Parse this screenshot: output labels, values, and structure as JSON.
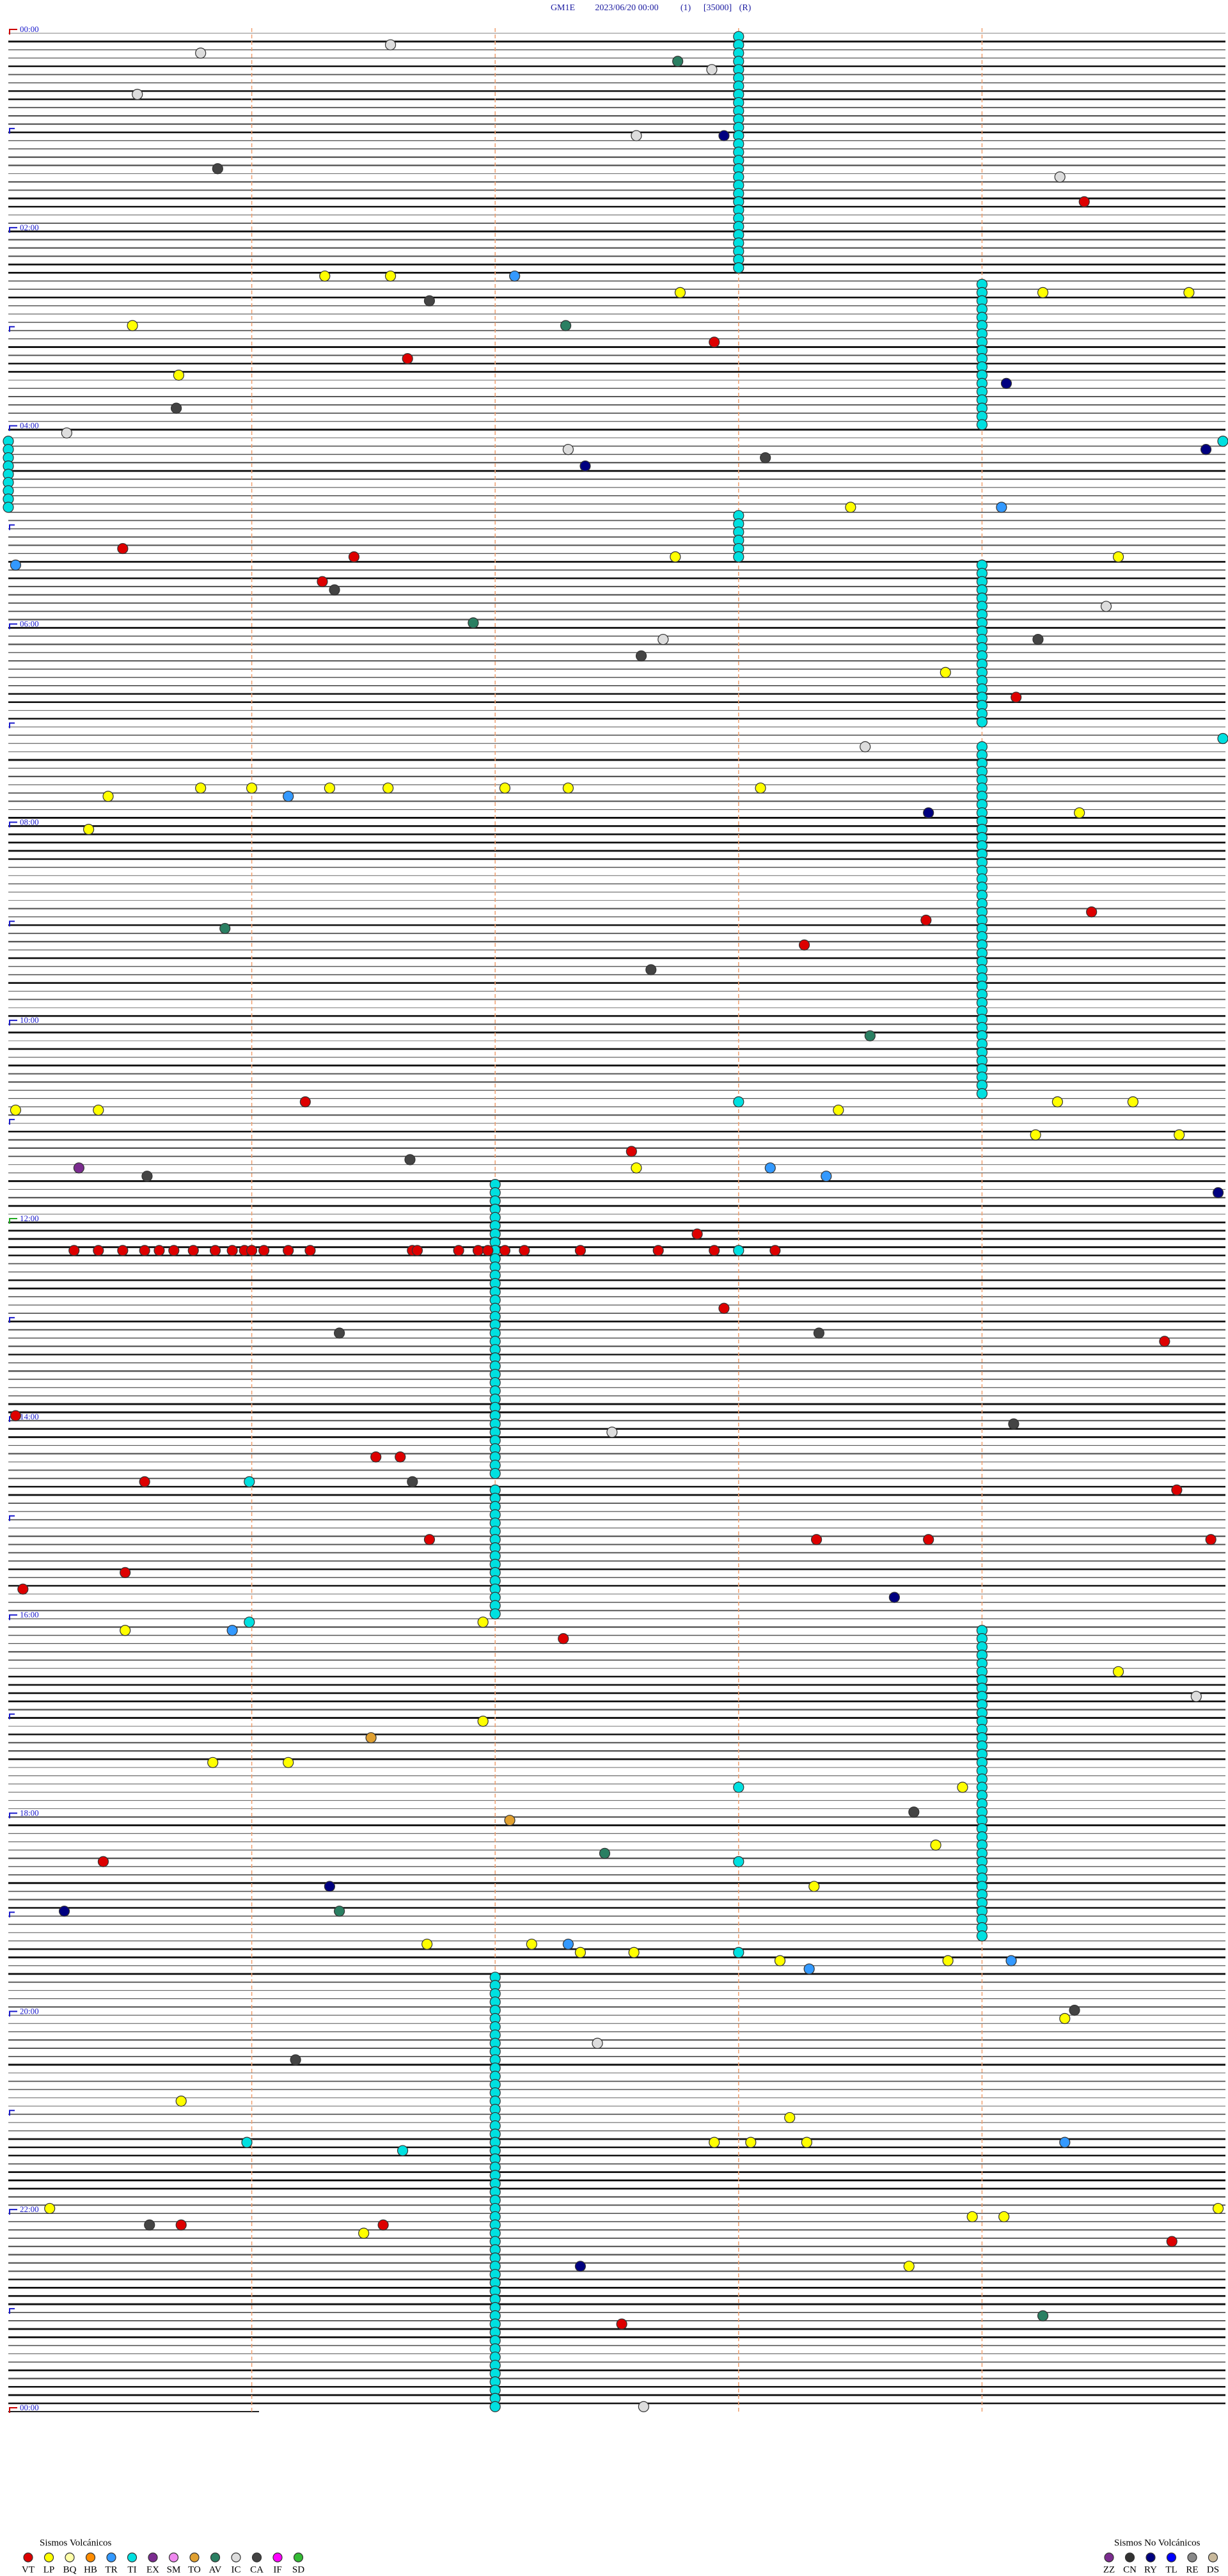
{
  "header": {
    "station": "GM1E",
    "datetime": "2023/06/20 00:00",
    "channel": "(1)",
    "scale": "[35000]",
    "mode": "(R)"
  },
  "hour_labels": [
    "00:00",
    "02:00",
    "04:00",
    "06:00",
    "08:00",
    "10:00",
    "12:00",
    "14:00",
    "16:00",
    "18:00",
    "20:00",
    "22:00",
    "00:00"
  ],
  "legend": {
    "volcanic": {
      "title": "Sismos Volcánicos",
      "items": [
        {
          "code": "VT",
          "color": "#dd0000"
        },
        {
          "code": "LP",
          "color": "#ffff00"
        },
        {
          "code": "BQ",
          "color": "#ffffa8"
        },
        {
          "code": "HB",
          "color": "#ff8c00"
        },
        {
          "code": "TR",
          "color": "#3399ff"
        },
        {
          "code": "TI",
          "color": "#00e0e0"
        },
        {
          "code": "EX",
          "color": "#7b2c8f"
        },
        {
          "code": "SM",
          "color": "#ee88ee"
        },
        {
          "code": "TO",
          "color": "#e0a030"
        },
        {
          "code": "AV",
          "color": "#2a7f62"
        },
        {
          "code": "IC",
          "color": "#dddddd"
        },
        {
          "code": "CA",
          "color": "#444444"
        },
        {
          "code": "IF",
          "color": "#ff00ff"
        },
        {
          "code": "SD",
          "color": "#33bb33"
        }
      ]
    },
    "non_volcanic": {
      "title": "Sismos No Volcánicos",
      "items": [
        {
          "code": "ZZ",
          "color": "#7b2c8f"
        },
        {
          "code": "CN",
          "color": "#333333"
        },
        {
          "code": "RY",
          "color": "#000080"
        },
        {
          "code": "TL",
          "color": "#0000ff"
        },
        {
          "code": "RE",
          "color": "#888888"
        },
        {
          "code": "DS",
          "color": "#c8b89a"
        }
      ]
    }
  },
  "event_runs": [
    [
      3.0,
      0,
      28,
      5
    ],
    [
      4.0,
      30,
      47,
      5
    ],
    [
      0.0,
      49,
      57,
      5
    ],
    [
      3.0,
      58,
      63,
      5
    ],
    [
      4.0,
      64,
      83,
      5
    ],
    [
      4.0,
      86,
      128,
      5
    ],
    [
      2.0,
      139,
      174,
      5
    ],
    [
      2.0,
      176,
      191,
      5
    ],
    [
      4.0,
      193,
      230,
      5
    ],
    [
      2.0,
      235,
      287,
      5
    ]
  ],
  "events": [
    [
      1.4,
      1.57,
      0,
      10
    ],
    [
      2.4,
      0.79,
      0,
      10
    ],
    [
      3.4,
      2.75,
      0,
      9
    ],
    [
      4.4,
      2.89,
      0,
      10
    ],
    [
      7.4,
      0.53,
      0,
      10
    ],
    [
      12.4,
      2.94,
      1,
      2
    ],
    [
      12.4,
      2.58,
      0,
      10
    ],
    [
      16.4,
      0.86,
      0,
      11
    ],
    [
      17.4,
      4.32,
      0,
      10
    ],
    [
      20.4,
      4.42,
      0,
      0
    ],
    [
      29.4,
      1.3,
      0,
      1
    ],
    [
      29.4,
      1.57,
      0,
      1
    ],
    [
      29.4,
      2.08,
      0,
      4
    ],
    [
      31.4,
      2.76,
      0,
      1
    ],
    [
      31.4,
      4.25,
      0,
      1
    ],
    [
      31.4,
      4.85,
      0,
      1
    ],
    [
      32.4,
      1.73,
      0,
      11
    ],
    [
      35.4,
      0.51,
      0,
      1
    ],
    [
      35.4,
      2.29,
      0,
      9
    ],
    [
      37.4,
      2.9,
      0,
      0
    ],
    [
      39.4,
      1.64,
      0,
      0
    ],
    [
      41.4,
      0.7,
      0,
      1
    ],
    [
      42.4,
      4.1,
      1,
      2
    ],
    [
      45.4,
      0.69,
      0,
      11
    ],
    [
      48.4,
      0.24,
      0,
      10
    ],
    [
      49.4,
      5.0,
      0,
      5
    ],
    [
      51.4,
      3.11,
      0,
      11
    ],
    [
      50.4,
      4.92,
      1,
      2
    ],
    [
      52.4,
      2.37,
      1,
      2
    ],
    [
      57.4,
      3.46,
      0,
      1
    ],
    [
      57.4,
      4.08,
      0,
      4
    ],
    [
      62.4,
      0.47,
      0,
      0
    ],
    [
      63.4,
      1.42,
      0,
      0
    ],
    [
      63.4,
      2.74,
      0,
      1
    ],
    [
      63.4,
      4.56,
      0,
      1
    ],
    [
      64.4,
      0.03,
      0,
      4
    ],
    [
      66.4,
      1.29,
      0,
      0
    ],
    [
      67.4,
      1.34,
      0,
      11
    ],
    [
      71.4,
      1.91,
      0,
      9
    ],
    [
      73.4,
      4.23,
      0,
      11
    ],
    [
      75.4,
      2.6,
      0,
      11
    ],
    [
      77.4,
      3.85,
      0,
      1
    ],
    [
      80.4,
      4.14,
      0,
      0
    ],
    [
      85.4,
      5.0,
      0,
      5
    ],
    [
      92.4,
      0.41,
      0,
      1
    ],
    [
      91.4,
      0.79,
      0,
      1
    ],
    [
      91.4,
      1.0,
      0,
      1
    ],
    [
      91.4,
      1.32,
      0,
      1
    ],
    [
      91.4,
      1.56,
      0,
      1
    ],
    [
      91.4,
      2.04,
      0,
      1
    ],
    [
      91.4,
      2.3,
      0,
      1
    ],
    [
      91.4,
      3.09,
      0,
      1
    ],
    [
      92.4,
      1.15,
      0,
      4
    ],
    [
      94.4,
      3.78,
      1,
      2
    ],
    [
      94.4,
      4.4,
      0,
      1
    ],
    [
      96.4,
      0.33,
      0,
      1
    ],
    [
      108.4,
      0.89,
      0,
      9
    ],
    [
      107.4,
      3.77,
      0,
      0
    ],
    [
      106.4,
      4.45,
      0,
      0
    ],
    [
      110.4,
      3.27,
      0,
      0
    ],
    [
      113.4,
      2.64,
      0,
      11
    ],
    [
      121.4,
      3.54,
      0,
      9
    ],
    [
      129.4,
      1.22,
      0,
      0
    ],
    [
      130.4,
      0.03,
      0,
      1
    ],
    [
      130.4,
      0.37,
      0,
      1
    ],
    [
      130.4,
      3.41,
      0,
      1
    ],
    [
      129.4,
      4.31,
      0,
      1
    ],
    [
      129.4,
      4.62,
      0,
      1
    ],
    [
      129.4,
      3.0,
      0,
      5
    ],
    [
      133.4,
      4.22,
      0,
      1
    ],
    [
      133.4,
      4.81,
      0,
      1
    ],
    [
      135.4,
      2.56,
      0,
      0
    ],
    [
      136.4,
      1.65,
      0,
      11
    ],
    [
      137.4,
      0.29,
      0,
      6
    ],
    [
      137.4,
      2.58,
      0,
      1
    ],
    [
      137.4,
      3.13,
      0,
      4
    ],
    [
      138.4,
      0.57,
      0,
      11
    ],
    [
      138.4,
      3.36,
      0,
      4
    ],
    [
      140.4,
      4.97,
      1,
      2
    ],
    [
      145.4,
      2.83,
      0,
      0
    ],
    [
      147.4,
      0.27,
      0,
      0
    ],
    [
      147.4,
      0.37,
      0,
      0
    ],
    [
      147.4,
      0.47,
      0,
      0
    ],
    [
      147.4,
      0.56,
      0,
      0
    ],
    [
      147.4,
      0.62,
      0,
      0
    ],
    [
      147.4,
      0.68,
      0,
      0
    ],
    [
      147.4,
      0.76,
      0,
      0
    ],
    [
      147.4,
      0.85,
      0,
      0
    ],
    [
      147.4,
      0.92,
      0,
      0
    ],
    [
      147.4,
      0.97,
      0,
      0
    ],
    [
      147.4,
      1.0,
      0,
      0
    ],
    [
      147.4,
      1.05,
      0,
      0
    ],
    [
      147.4,
      1.15,
      0,
      0
    ],
    [
      147.4,
      1.24,
      0,
      0
    ],
    [
      147.4,
      1.66,
      0,
      0
    ],
    [
      147.4,
      1.68,
      0,
      0
    ],
    [
      147.4,
      1.85,
      0,
      0
    ],
    [
      147.4,
      1.93,
      0,
      0
    ],
    [
      147.4,
      1.97,
      0,
      0
    ],
    [
      147.4,
      2.04,
      0,
      0
    ],
    [
      147.4,
      2.12,
      0,
      0
    ],
    [
      147.4,
      2.35,
      0,
      0
    ],
    [
      147.4,
      2.67,
      0,
      0
    ],
    [
      147.4,
      2.9,
      0,
      0
    ],
    [
      147.4,
      3.15,
      0,
      0
    ],
    [
      147.4,
      3.0,
      0,
      5
    ],
    [
      154.4,
      2.94,
      0,
      0
    ],
    [
      157.4,
      1.36,
      0,
      11
    ],
    [
      157.4,
      3.33,
      0,
      11
    ],
    [
      158.4,
      4.75,
      0,
      0
    ],
    [
      168.4,
      4.13,
      0,
      11
    ],
    [
      167.4,
      0.03,
      0,
      0
    ],
    [
      172.4,
      1.51,
      0,
      0
    ],
    [
      172.4,
      1.61,
      0,
      0
    ],
    [
      175.4,
      0.56,
      0,
      0
    ],
    [
      175.4,
      0.99,
      0,
      5
    ],
    [
      175.4,
      1.66,
      0,
      11
    ],
    [
      176.4,
      4.8,
      0,
      0
    ],
    [
      182.4,
      1.73,
      0,
      0
    ],
    [
      182.4,
      3.32,
      0,
      0
    ],
    [
      182.4,
      3.78,
      0,
      0
    ],
    [
      182.4,
      4.94,
      0,
      0
    ],
    [
      186.4,
      0.48,
      0,
      0
    ],
    [
      188.4,
      0.06,
      0,
      0
    ],
    [
      189.4,
      3.64,
      1,
      2
    ],
    [
      193.4,
      0.48,
      0,
      1
    ],
    [
      193.4,
      0.92,
      0,
      4
    ],
    [
      192.4,
      0.99,
      0,
      5
    ],
    [
      192.4,
      1.95,
      0,
      1
    ],
    [
      194.4,
      2.28,
      0,
      0
    ],
    [
      198.4,
      4.56,
      0,
      1
    ],
    [
      206.4,
      1.49,
      0,
      8
    ],
    [
      204.4,
      1.95,
      0,
      1
    ],
    [
      209.4,
      0.84,
      0,
      1
    ],
    [
      209.4,
      1.15,
      0,
      1
    ],
    [
      212.4,
      3.0,
      0,
      5
    ],
    [
      212.4,
      3.92,
      0,
      1
    ],
    [
      215.4,
      3.72,
      0,
      11
    ],
    [
      216.4,
      2.06,
      0,
      8
    ],
    [
      220.4,
      2.45,
      0,
      9
    ],
    [
      221.4,
      0.39,
      0,
      0
    ],
    [
      221.4,
      3.0,
      0,
      5
    ],
    [
      219.4,
      3.81,
      0,
      1
    ],
    [
      224.4,
      3.31,
      0,
      1
    ],
    [
      224.4,
      1.32,
      1,
      2
    ],
    [
      227.4,
      1.36,
      0,
      9
    ],
    [
      227.4,
      0.23,
      1,
      2
    ],
    [
      231.4,
      1.72,
      0,
      1
    ],
    [
      231.4,
      2.15,
      0,
      1
    ],
    [
      231.4,
      2.3,
      0,
      4
    ],
    [
      232.4,
      2.35,
      0,
      1
    ],
    [
      232.4,
      2.57,
      0,
      1
    ],
    [
      232.4,
      3.0,
      0,
      5
    ],
    [
      233.4,
      3.17,
      0,
      1
    ],
    [
      234.4,
      3.29,
      0,
      4
    ],
    [
      233.4,
      3.86,
      0,
      1
    ],
    [
      233.4,
      4.12,
      0,
      4
    ],
    [
      239.4,
      4.38,
      0,
      11
    ],
    [
      240.4,
      4.34,
      0,
      1
    ],
    [
      245.4,
      1.18,
      0,
      11
    ],
    [
      250.4,
      0.71,
      0,
      1
    ],
    [
      252.4,
      3.21,
      0,
      1
    ],
    [
      255.4,
      0.98,
      0,
      5
    ],
    [
      256.4,
      1.62,
      0,
      5
    ],
    [
      255.4,
      2.9,
      0,
      1
    ],
    [
      255.4,
      3.05,
      0,
      1
    ],
    [
      255.4,
      3.28,
      0,
      1
    ],
    [
      255.4,
      4.34,
      0,
      4
    ],
    [
      263.4,
      0.17,
      0,
      1
    ],
    [
      263.4,
      4.97,
      0,
      1
    ],
    [
      264.4,
      3.96,
      0,
      1
    ],
    [
      264.4,
      4.09,
      0,
      1
    ],
    [
      265.4,
      0.58,
      0,
      11
    ],
    [
      265.4,
      0.71,
      0,
      0
    ],
    [
      265.4,
      1.54,
      0,
      0
    ],
    [
      266.4,
      1.46,
      0,
      1
    ],
    [
      267.4,
      4.78,
      0,
      0
    ],
    [
      270.4,
      2.35,
      1,
      2
    ],
    [
      270.4,
      3.7,
      0,
      1
    ],
    [
      276.4,
      4.25,
      0,
      9
    ],
    [
      277.4,
      2.52,
      0,
      0
    ],
    [
      50.4,
      2.3,
      0,
      10
    ],
    [
      73.4,
      2.69,
      0,
      10
    ],
    [
      69.4,
      4.51,
      0,
      10
    ],
    [
      86.4,
      3.52,
      0,
      10
    ],
    [
      201.4,
      4.88,
      0,
      10
    ],
    [
      169.4,
      2.48,
      0,
      10
    ],
    [
      287.4,
      2.61,
      0,
      10
    ],
    [
      243.4,
      2.42,
      0,
      10
    ]
  ]
}
